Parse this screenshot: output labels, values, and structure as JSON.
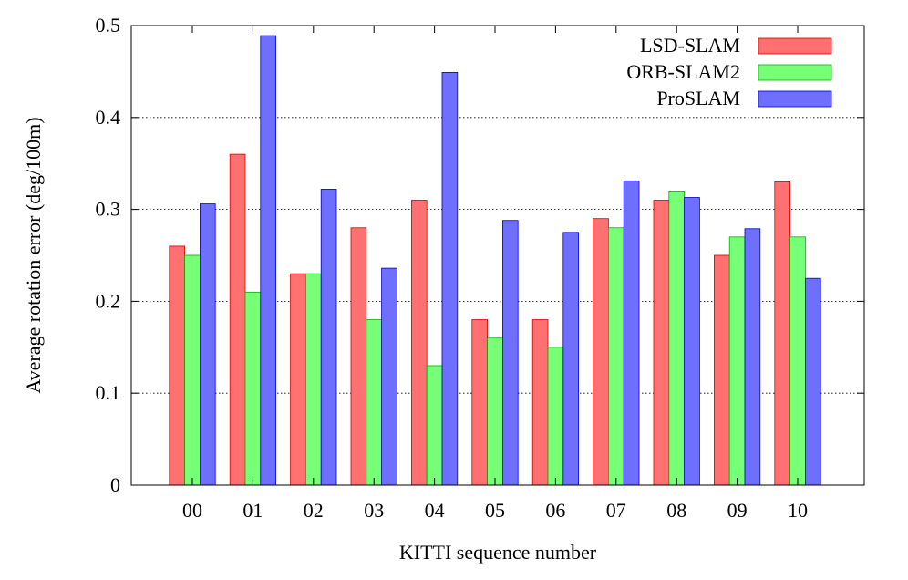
{
  "chart_data": {
    "type": "bar",
    "xlabel": "KITTI sequence number",
    "ylabel": "Average rotation error (deg/100m)",
    "ylim": [
      0,
      0.5
    ],
    "yticks": [
      "0",
      "0.1",
      "0.2",
      "0.3",
      "0.4",
      "0.5"
    ],
    "categories": [
      "00",
      "01",
      "02",
      "03",
      "04",
      "05",
      "06",
      "07",
      "08",
      "09",
      "10"
    ],
    "grid": "horizontal dotted",
    "legend_position": "top-right",
    "series": [
      {
        "name": "LSD-SLAM",
        "color": "#ff7070",
        "border": "#d40000",
        "values": [
          0.26,
          0.36,
          0.23,
          0.28,
          0.31,
          0.18,
          0.18,
          0.29,
          0.31,
          0.25,
          0.33
        ]
      },
      {
        "name": "ORB-SLAM2",
        "color": "#78ff78",
        "border": "#00b000",
        "values": [
          0.25,
          0.21,
          0.23,
          0.18,
          0.13,
          0.16,
          0.15,
          0.28,
          0.32,
          0.27,
          0.27
        ]
      },
      {
        "name": "ProSLAM",
        "color": "#6f6fff",
        "border": "#0000cc",
        "values": [
          0.306,
          0.489,
          0.322,
          0.236,
          0.449,
          0.288,
          0.275,
          0.331,
          0.313,
          0.279,
          0.225
        ]
      }
    ]
  }
}
